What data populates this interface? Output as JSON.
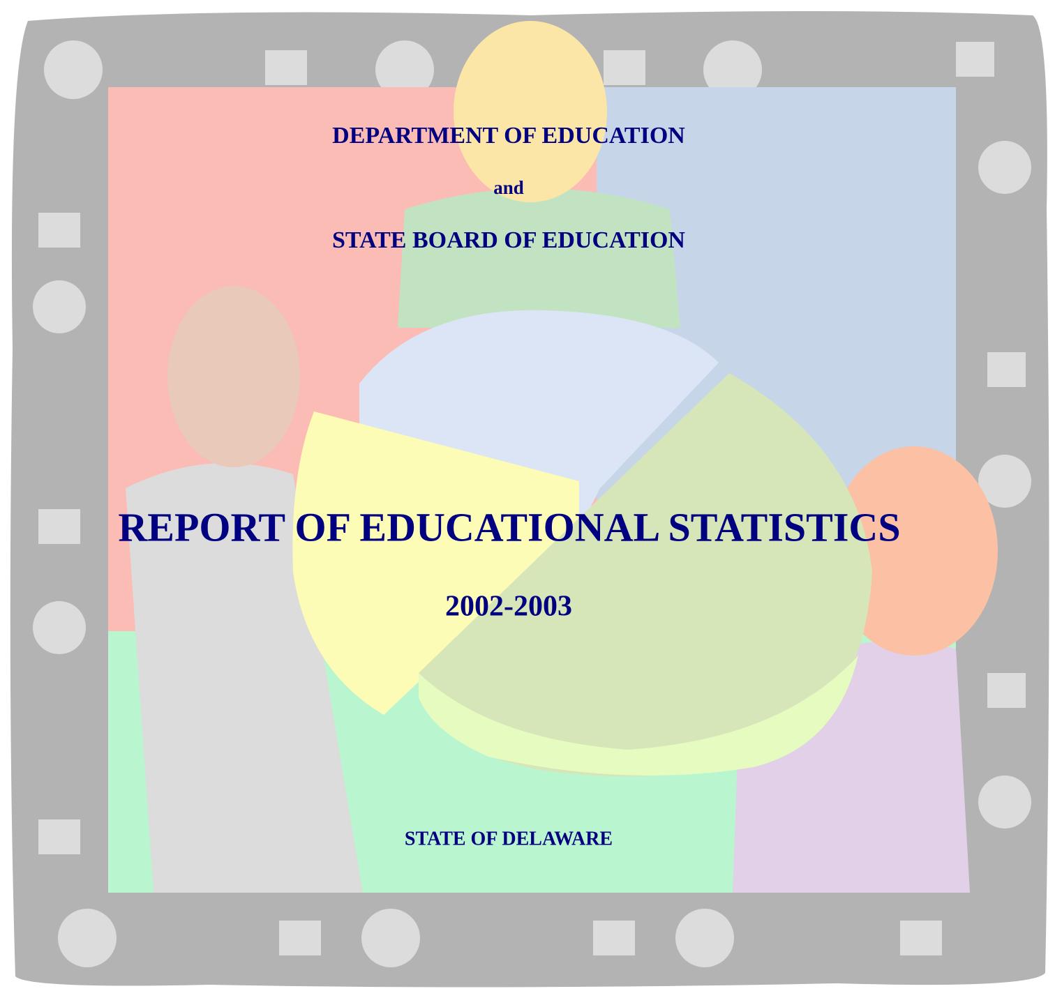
{
  "cover": {
    "line1": "DEPARTMENT OF EDUCATION",
    "line2": "and",
    "line3": "STATE BOARD OF EDUCATION",
    "title": "REPORT OF EDUCATIONAL STATISTICS",
    "years": "2002-2003",
    "footer": "STATE OF DELAWARE"
  }
}
